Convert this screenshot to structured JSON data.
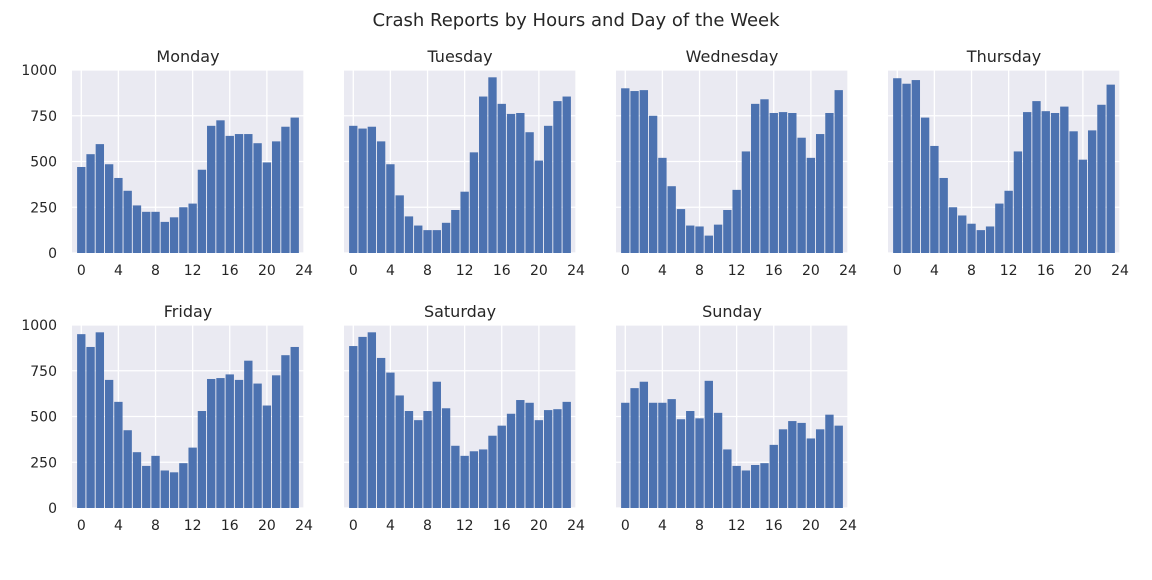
{
  "figure": {
    "title": "Crash Reports by Hours and Day of the Week"
  },
  "style": {
    "bar_color": "#4c72b0",
    "panel_background": "#eaeaf2",
    "grid_color": "#ffffff"
  },
  "chart_data": [
    {
      "type": "bar",
      "title": "Monday",
      "x": [
        0,
        1,
        2,
        3,
        4,
        5,
        6,
        7,
        8,
        9,
        10,
        11,
        12,
        13,
        14,
        15,
        16,
        17,
        18,
        19,
        20,
        21,
        22,
        23
      ],
      "values": [
        470,
        540,
        595,
        485,
        410,
        340,
        260,
        225,
        225,
        170,
        195,
        250,
        270,
        455,
        695,
        725,
        640,
        650,
        650,
        600,
        495,
        610,
        690,
        740
      ],
      "xlim": [
        -1,
        24
      ],
      "ylim": [
        0,
        1000
      ],
      "xticks": [
        0,
        4,
        8,
        12,
        16,
        20,
        24
      ],
      "yticks": [
        0,
        250,
        500,
        750,
        1000
      ],
      "grid": true
    },
    {
      "type": "bar",
      "title": "Tuesday",
      "x": [
        0,
        1,
        2,
        3,
        4,
        5,
        6,
        7,
        8,
        9,
        10,
        11,
        12,
        13,
        14,
        15,
        16,
        17,
        18,
        19,
        20,
        21,
        22,
        23
      ],
      "values": [
        695,
        680,
        690,
        610,
        485,
        315,
        200,
        150,
        125,
        125,
        165,
        235,
        335,
        550,
        855,
        960,
        815,
        760,
        765,
        660,
        505,
        695,
        830,
        855
      ],
      "xlim": [
        -1,
        24
      ],
      "ylim": [
        0,
        1000
      ],
      "xticks": [
        0,
        4,
        8,
        12,
        16,
        20,
        24
      ],
      "yticks": [
        0,
        250,
        500,
        750,
        1000
      ],
      "grid": true
    },
    {
      "type": "bar",
      "title": "Wednesday",
      "x": [
        0,
        1,
        2,
        3,
        4,
        5,
        6,
        7,
        8,
        9,
        10,
        11,
        12,
        13,
        14,
        15,
        16,
        17,
        18,
        19,
        20,
        21,
        22,
        23
      ],
      "values": [
        900,
        885,
        890,
        750,
        520,
        365,
        240,
        150,
        145,
        95,
        155,
        235,
        345,
        555,
        815,
        840,
        765,
        770,
        765,
        630,
        520,
        650,
        765,
        890
      ],
      "xlim": [
        -1,
        24
      ],
      "ylim": [
        0,
        1000
      ],
      "xticks": [
        0,
        4,
        8,
        12,
        16,
        20,
        24
      ],
      "yticks": [
        0,
        250,
        500,
        750,
        1000
      ],
      "grid": true
    },
    {
      "type": "bar",
      "title": "Thursday",
      "x": [
        0,
        1,
        2,
        3,
        4,
        5,
        6,
        7,
        8,
        9,
        10,
        11,
        12,
        13,
        14,
        15,
        16,
        17,
        18,
        19,
        20,
        21,
        22,
        23
      ],
      "values": [
        955,
        925,
        945,
        740,
        585,
        410,
        250,
        205,
        160,
        125,
        145,
        270,
        340,
        555,
        770,
        830,
        775,
        765,
        800,
        665,
        510,
        670,
        810,
        920
      ],
      "xlim": [
        -1,
        24
      ],
      "ylim": [
        0,
        1000
      ],
      "xticks": [
        0,
        4,
        8,
        12,
        16,
        20,
        24
      ],
      "yticks": [
        0,
        250,
        500,
        750,
        1000
      ],
      "grid": true
    },
    {
      "type": "bar",
      "title": "Friday",
      "x": [
        0,
        1,
        2,
        3,
        4,
        5,
        6,
        7,
        8,
        9,
        10,
        11,
        12,
        13,
        14,
        15,
        16,
        17,
        18,
        19,
        20,
        21,
        22,
        23
      ],
      "values": [
        950,
        880,
        960,
        700,
        580,
        425,
        305,
        230,
        285,
        205,
        195,
        245,
        330,
        530,
        705,
        710,
        730,
        700,
        805,
        680,
        560,
        725,
        835,
        880
      ],
      "xlim": [
        -1,
        24
      ],
      "ylim": [
        0,
        1000
      ],
      "xticks": [
        0,
        4,
        8,
        12,
        16,
        20,
        24
      ],
      "yticks": [
        0,
        250,
        500,
        750,
        1000
      ],
      "grid": true
    },
    {
      "type": "bar",
      "title": "Saturday",
      "x": [
        0,
        1,
        2,
        3,
        4,
        5,
        6,
        7,
        8,
        9,
        10,
        11,
        12,
        13,
        14,
        15,
        16,
        17,
        18,
        19,
        20,
        21,
        22,
        23
      ],
      "values": [
        885,
        935,
        960,
        820,
        740,
        615,
        530,
        480,
        530,
        690,
        545,
        340,
        285,
        310,
        320,
        395,
        450,
        515,
        590,
        575,
        480,
        535,
        540,
        580
      ],
      "xlim": [
        -1,
        24
      ],
      "ylim": [
        0,
        1000
      ],
      "xticks": [
        0,
        4,
        8,
        12,
        16,
        20,
        24
      ],
      "yticks": [
        0,
        250,
        500,
        750,
        1000
      ],
      "grid": true
    },
    {
      "type": "bar",
      "title": "Sunday",
      "x": [
        0,
        1,
        2,
        3,
        4,
        5,
        6,
        7,
        8,
        9,
        10,
        11,
        12,
        13,
        14,
        15,
        16,
        17,
        18,
        19,
        20,
        21,
        22,
        23
      ],
      "values": [
        575,
        655,
        690,
        575,
        575,
        595,
        485,
        530,
        490,
        695,
        520,
        320,
        230,
        205,
        235,
        245,
        345,
        430,
        475,
        465,
        380,
        430,
        510,
        450
      ],
      "xlim": [
        -1,
        24
      ],
      "ylim": [
        0,
        1000
      ],
      "xticks": [
        0,
        4,
        8,
        12,
        16,
        20,
        24
      ],
      "yticks": [
        0,
        250,
        500,
        750,
        1000
      ],
      "grid": true
    }
  ]
}
